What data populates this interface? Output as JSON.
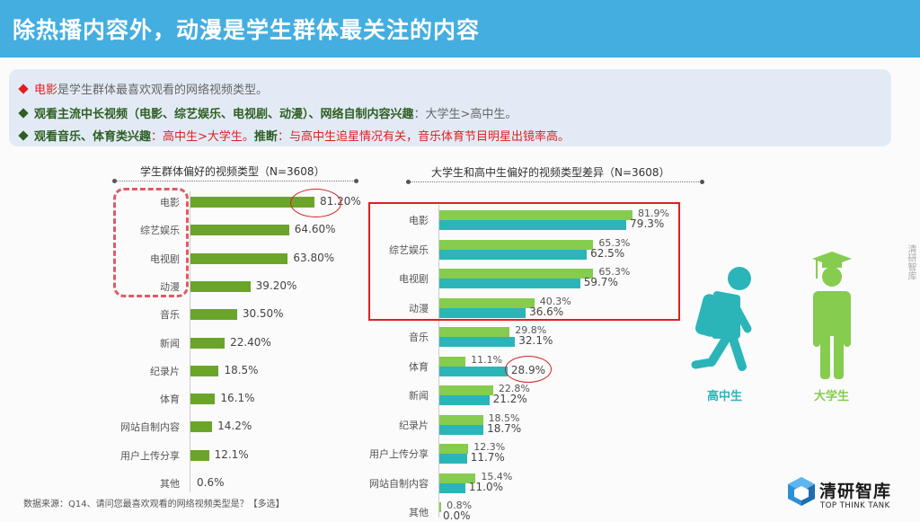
{
  "header": {
    "title": "除热播内容外，动漫是学生群体最关注的内容"
  },
  "summary": {
    "line1": {
      "highlight": "电影",
      "text": "是学生群体最喜欢观看的网络视频类型。"
    },
    "line2": {
      "bold": "观看主流中长视频（电影、综艺娱乐、电视剧、动漫）、网络自制内容兴趣",
      "text": "：大学生>高中生。"
    },
    "line3": {
      "bold": "观看音乐、体育类兴趣",
      "red1": "：高中生>大学生。",
      "bold2": "推断",
      "red2": "：与高中生追星情况有关，音乐体育节目明星出镜率高。"
    }
  },
  "colors": {
    "header": "#44aee0",
    "bar_single": "#6aa52a",
    "college": "#86cc4e",
    "highschool": "#2bb5b8",
    "highlight": "#e02020"
  },
  "chart_data": [
    {
      "type": "bar",
      "orientation": "horizontal",
      "title": "学生群体偏好的视频类型（N=3608）",
      "categories": [
        "电影",
        "综艺娱乐",
        "电视剧",
        "动漫",
        "音乐",
        "新闻",
        "纪录片",
        "体育",
        "网站自制内容",
        "用户上传分享",
        "其他"
      ],
      "values": [
        81.2,
        64.6,
        63.8,
        39.2,
        30.5,
        22.4,
        18.5,
        16.1,
        14.2,
        12.1,
        0.6
      ],
      "labels": [
        "81.20%",
        "64.60%",
        "63.80%",
        "39.20%",
        "30.50%",
        "22.40%",
        "18.5%",
        "16.1%",
        "14.2%",
        "12.1%",
        "0.6%"
      ],
      "annotations": [
        "Dashed box around 电影/综艺娱乐/电视剧/动漫",
        "Circle on 81.20%"
      ]
    },
    {
      "type": "bar",
      "orientation": "horizontal",
      "title": "大学生和高中生偏好的视频类型差异（N=3608）",
      "categories": [
        "电影",
        "综艺娱乐",
        "电视剧",
        "动漫",
        "音乐",
        "体育",
        "新闻",
        "纪录片",
        "用户上传分享",
        "网站自制内容",
        "其他"
      ],
      "series": [
        {
          "name": "大学生",
          "values": [
            81.9,
            65.3,
            65.3,
            40.3,
            29.8,
            11.1,
            22.8,
            18.5,
            12.3,
            15.4,
            0.8
          ]
        },
        {
          "name": "高中生",
          "values": [
            79.3,
            62.5,
            59.7,
            36.6,
            32.1,
            28.9,
            21.2,
            18.7,
            11.7,
            11.0,
            0.0
          ]
        }
      ],
      "annotations": [
        "Red box around 电影/综艺娱乐/电视剧/动漫",
        "Circle on 28.9%"
      ]
    }
  ],
  "charts": {
    "left": {
      "title": "学生群体偏好的视频类型（N=3608）",
      "rows": [
        {
          "label": "电影",
          "value": "81.20%"
        },
        {
          "label": "综艺娱乐",
          "value": "64.60%"
        },
        {
          "label": "电视剧",
          "value": "63.80%"
        },
        {
          "label": "动漫",
          "value": "39.20%"
        },
        {
          "label": "音乐",
          "value": "30.50%"
        },
        {
          "label": "新闻",
          "value": "22.40%"
        },
        {
          "label": "纪录片",
          "value": "18.5%"
        },
        {
          "label": "体育",
          "value": "16.1%"
        },
        {
          "label": "网站自制内容",
          "value": "14.2%"
        },
        {
          "label": "用户上传分享",
          "value": "12.1%"
        },
        {
          "label": "其他",
          "value": "0.6%"
        }
      ]
    },
    "right": {
      "title": "大学生和高中生偏好的视频类型差异（N=3608）",
      "rows": [
        {
          "label": "电影",
          "college": "81.9%",
          "high": "79.3%"
        },
        {
          "label": "综艺娱乐",
          "college": "65.3%",
          "high": "62.5%"
        },
        {
          "label": "电视剧",
          "college": "65.3%",
          "high": "59.7%"
        },
        {
          "label": "动漫",
          "college": "40.3%",
          "high": "36.6%"
        },
        {
          "label": "音乐",
          "college": "29.8%",
          "high": "32.1%"
        },
        {
          "label": "体育",
          "college": "11.1%",
          "high": "28.9%"
        },
        {
          "label": "新闻",
          "college": "22.8%",
          "high": "21.2%"
        },
        {
          "label": "纪录片",
          "college": "18.5%",
          "high": "18.7%"
        },
        {
          "label": "用户上传分享",
          "college": "12.3%",
          "high": "11.7%"
        },
        {
          "label": "网站自制内容",
          "college": "15.4%",
          "high": "11.0%"
        },
        {
          "label": "其他",
          "college": "0.8%",
          "high": "0.0%"
        }
      ]
    }
  },
  "legend": {
    "highschool": "高中生",
    "college": "大学生"
  },
  "source": "数据来源：Q14、请问您最喜欢观看的网络视频类型是？【多选】",
  "side_text": "清研智库",
  "logo": {
    "cn": "清研智库",
    "en": "TOP THINK TANK"
  }
}
